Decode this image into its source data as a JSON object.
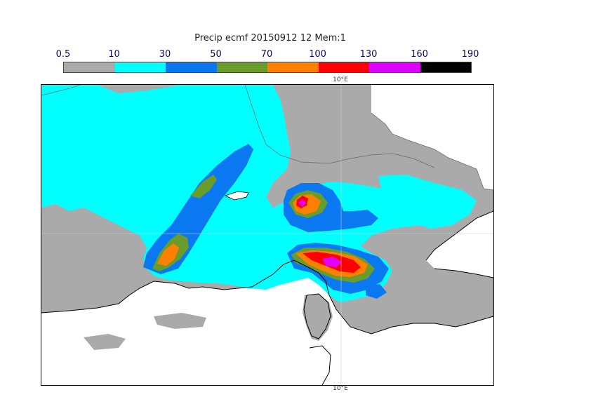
{
  "title": "Precip ecmf 20150912 12 Mem:1",
  "legend": {
    "ticks": [
      "0.5",
      "10",
      "30",
      "50",
      "70",
      "100",
      "130",
      "160",
      "190"
    ],
    "colors": [
      "#aaaaaa",
      "#00ffff",
      "#0a78f0",
      "#6a9c2c",
      "#ff8000",
      "#ff0000",
      "#e000ff",
      "#000000"
    ]
  },
  "map": {
    "lon_label_top": "10°E",
    "lon_label_bottom": "10°E"
  }
}
